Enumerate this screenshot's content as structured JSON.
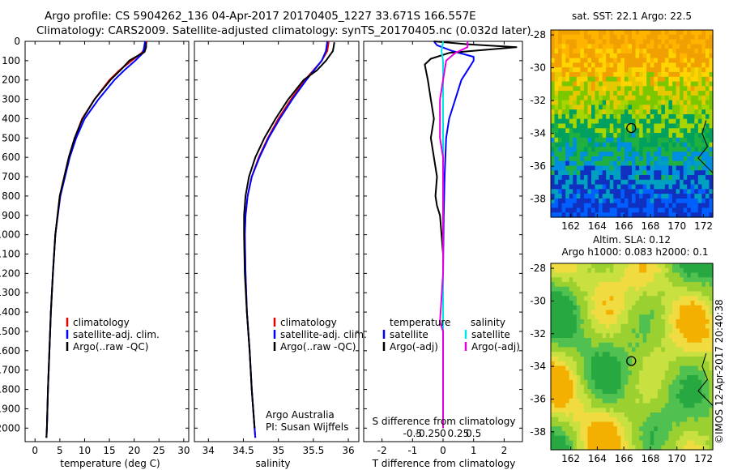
{
  "header": {
    "line1": "Argo profile: CS 5904262_136 04-Apr-2017 20170405_1227 33.671S 166.557E",
    "line2": "Climatology: CARS2009. Satellite-adjusted climatology: synTS_20170405.nc (0.032d later)"
  },
  "colors": {
    "climatology": "#e00000",
    "satellite": "#0000ff",
    "argo": "#000000",
    "salinity_satellite": "#00e5e5",
    "salinity_argo": "#e000e0"
  },
  "chart_data": [
    {
      "type": "line",
      "id": "temperature",
      "xlabel": "temperature (deg C)",
      "ylabel": "",
      "xlim": [
        -2,
        31
      ],
      "ylim": [
        2070,
        0
      ],
      "xticks": [
        0,
        5,
        10,
        15,
        20,
        25,
        30
      ],
      "yticks": [
        0,
        100,
        200,
        300,
        400,
        500,
        600,
        700,
        800,
        900,
        1000,
        1100,
        1200,
        1300,
        1400,
        1500,
        1600,
        1700,
        1800,
        1900,
        2000
      ],
      "legend": [
        "climatology",
        "satellite-adj. clim.",
        "Argo(..raw -QC)"
      ],
      "series": [
        {
          "name": "climatology",
          "color": "#e00000",
          "y": [
            0,
            30,
            60,
            100,
            150,
            200,
            300,
            400,
            500,
            600,
            800,
            1000,
            1200,
            1400,
            1600,
            1800,
            2000,
            2050
          ],
          "x": [
            22.5,
            22.3,
            21.5,
            19.5,
            17.0,
            15.0,
            12.0,
            9.5,
            8.0,
            6.8,
            5.0,
            4.1,
            3.6,
            3.2,
            2.9,
            2.6,
            2.4,
            2.3
          ]
        },
        {
          "name": "satellite-adj. clim.",
          "color": "#0000ff",
          "y": [
            0,
            30,
            60,
            100,
            150,
            200,
            300,
            400,
            500,
            600,
            800,
            1000,
            1200,
            1400,
            1600,
            1800,
            2000,
            2050
          ],
          "x": [
            22.2,
            22.0,
            21.8,
            20.2,
            18.0,
            16.0,
            12.8,
            10.0,
            8.3,
            7.0,
            5.1,
            4.1,
            3.6,
            3.2,
            2.9,
            2.6,
            2.4,
            2.3
          ]
        },
        {
          "name": "Argo(..raw -QC)",
          "color": "#000000",
          "y": [
            5,
            30,
            55,
            70,
            100,
            150,
            200,
            300,
            400,
            500,
            600,
            800,
            1000,
            1200,
            1400,
            1600,
            1800,
            2000,
            2050
          ],
          "x": [
            22.4,
            22.4,
            22.1,
            21.0,
            19.0,
            17.2,
            15.2,
            12.0,
            9.6,
            8.0,
            6.8,
            5.0,
            4.1,
            3.6,
            3.2,
            2.9,
            2.6,
            2.4,
            2.3
          ]
        }
      ]
    },
    {
      "type": "line",
      "id": "salinity",
      "xlabel": "salinity",
      "ylabel": "",
      "xlim": [
        33.8,
        36.15
      ],
      "ylim": [
        2070,
        0
      ],
      "xticks": [
        34,
        34.5,
        35,
        35.5,
        36
      ],
      "legend": [
        "climatology",
        "satellite-adj. clim.",
        "Argo(..raw -QC)"
      ],
      "annotation": [
        "Argo Australia",
        "PI: Susan Wijffels"
      ],
      "series": [
        {
          "name": "climatology",
          "color": "#e00000",
          "y": [
            0,
            50,
            100,
            150,
            200,
            300,
            400,
            500,
            600,
            700,
            800,
            900,
            1000,
            1200,
            1400,
            1600,
            1800,
            2000,
            2050
          ],
          "x": [
            35.72,
            35.7,
            35.62,
            35.5,
            35.38,
            35.18,
            35.0,
            34.85,
            34.72,
            34.62,
            34.56,
            34.53,
            34.52,
            34.53,
            34.55,
            34.59,
            34.62,
            34.66,
            34.67
          ]
        },
        {
          "name": "satellite-adj. clim.",
          "color": "#0000ff",
          "y": [
            0,
            50,
            100,
            150,
            200,
            300,
            400,
            500,
            600,
            700,
            800,
            900,
            1000,
            1200,
            1400,
            1600,
            1800,
            2000,
            2050
          ],
          "x": [
            35.7,
            35.68,
            35.62,
            35.51,
            35.4,
            35.2,
            35.02,
            34.86,
            34.73,
            34.62,
            34.56,
            34.53,
            34.52,
            34.53,
            34.55,
            34.59,
            34.62,
            34.66,
            34.67
          ]
        },
        {
          "name": "Argo(..raw -QC)",
          "color": "#000000",
          "y": [
            5,
            50,
            100,
            150,
            200,
            300,
            400,
            500,
            600,
            700,
            800,
            900,
            1000,
            1200,
            1400,
            1600,
            1800,
            2000
          ],
          "x": [
            35.8,
            35.78,
            35.68,
            35.55,
            35.36,
            35.14,
            34.96,
            34.8,
            34.67,
            34.58,
            34.53,
            34.51,
            34.51,
            34.52,
            34.55,
            34.59,
            34.62,
            34.66
          ]
        }
      ]
    },
    {
      "type": "line",
      "id": "difference",
      "xlabel": "T difference from climatology",
      "xlabel2": "S difference from climatology",
      "xlim": [
        -2.6,
        2.6
      ],
      "ylim": [
        2070,
        0
      ],
      "xticks_T": [
        -2,
        -1,
        0,
        1,
        2
      ],
      "xtick_labels_T": [
        "-2",
        "-1",
        "0",
        "1",
        "2"
      ],
      "xtick_labels_S": [
        "-0.5",
        "-0.25",
        "0",
        "0.25",
        "0.5"
      ],
      "legend": {
        "temperature": [
          "temperature",
          "satellite",
          "Argo(-adj)"
        ],
        "salinity": [
          "salinity",
          "satellite",
          "Argo(-adj)"
        ]
      },
      "series": [
        {
          "name": "satellite",
          "color": "#0000ff",
          "y": [
            0,
            20,
            50,
            80,
            100,
            150,
            200,
            300,
            400,
            500,
            700,
            900,
            1200,
            1500,
            2000
          ],
          "x": [
            -0.3,
            -0.2,
            0.3,
            1.0,
            1.0,
            0.8,
            0.6,
            0.4,
            0.2,
            0.1,
            0.05,
            0.02,
            0.0,
            0.0,
            0.0
          ]
        },
        {
          "name": "Argo(-adj)",
          "color": "#000000",
          "y": [
            0,
            15,
            30,
            60,
            90,
            120,
            200,
            300,
            400,
            500,
            600,
            700,
            800,
            850,
            900,
            1000,
            1100,
            1500,
            2000
          ],
          "x": [
            -0.3,
            0.8,
            2.4,
            0.2,
            -0.4,
            -0.6,
            -0.5,
            -0.4,
            -0.3,
            -0.4,
            -0.3,
            -0.2,
            -0.25,
            -0.2,
            -0.1,
            -0.05,
            0.0,
            0.0,
            0.0
          ]
        },
        {
          "name": "satellite",
          "color": "#00e5e5",
          "y": [
            0,
            50,
            100,
            200,
            400,
            600,
            800,
            1000,
            1500,
            2000
          ],
          "x": [
            0.0,
            -0.05,
            0.0,
            0.0,
            0.0,
            0.0,
            0.0,
            0.0,
            0.0,
            0.0
          ]
        },
        {
          "name": "Argo(-adj)",
          "color": "#e000e0",
          "y": [
            0,
            30,
            60,
            100,
            200,
            300,
            400,
            500,
            600,
            700,
            800,
            1000,
            1200,
            1450,
            1500,
            2000
          ],
          "x": [
            0.8,
            0.8,
            0.4,
            0.1,
            0.0,
            -0.1,
            -0.1,
            -0.1,
            0.0,
            0.0,
            0.0,
            0.0,
            0.0,
            -0.1,
            0.0,
            0.0
          ]
        }
      ]
    },
    {
      "type": "heatmap",
      "id": "sst-map",
      "title": "sat. SST: 22.1  Argo: 22.5",
      "xticks": [
        162,
        164,
        166,
        168,
        170,
        172
      ],
      "yticks": [
        -28,
        -30,
        -32,
        -34,
        -36,
        -38
      ],
      "xlim": [
        160.5,
        172.7
      ],
      "ylim": [
        -39.1,
        -27.7
      ],
      "marker": {
        "lon": 166.557,
        "lat": -33.671
      }
    },
    {
      "type": "heatmap",
      "id": "sla-map",
      "title": "Altim. SLA: 0.12",
      "subtitle": "Argo h1000: 0.083 h2000: 0.1",
      "xticks": [
        162,
        164,
        166,
        168,
        170,
        172
      ],
      "yticks": [
        -28,
        -30,
        -32,
        -34,
        -36,
        -38
      ],
      "xlim": [
        160.5,
        172.7
      ],
      "ylim": [
        -39.1,
        -27.7
      ],
      "marker": {
        "lon": 166.557,
        "lat": -33.671
      }
    }
  ],
  "footer": {
    "side_stamp": "©IMOS 12-Apr-2017 20:40:38"
  }
}
